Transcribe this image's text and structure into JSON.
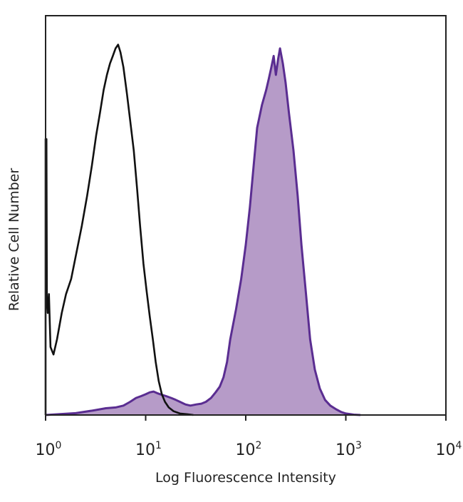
{
  "chart_data": {
    "type": "area",
    "xlabel": "Log Fluorescence Intensity",
    "ylabel": "Relative Cell Number",
    "xscale": "log",
    "xlim": [
      1,
      10000
    ],
    "ylim": [
      0,
      1.0
    ],
    "grid": false,
    "x_ticks": [
      {
        "base": "10",
        "exp": "0"
      },
      {
        "base": "10",
        "exp": "1"
      },
      {
        "base": "10",
        "exp": "2"
      },
      {
        "base": "10",
        "exp": "3"
      },
      {
        "base": "10",
        "exp": "4"
      }
    ],
    "series": [
      {
        "style": "outline",
        "color": "#111111",
        "points": [
          [
            1.0,
            0.0
          ],
          [
            1.0,
            0.73
          ],
          [
            1.02,
            0.73
          ],
          [
            1.03,
            0.31
          ],
          [
            1.05,
            0.27
          ],
          [
            1.08,
            0.32
          ],
          [
            1.12,
            0.18
          ],
          [
            1.2,
            0.16
          ],
          [
            1.3,
            0.2
          ],
          [
            1.45,
            0.27
          ],
          [
            1.6,
            0.32
          ],
          [
            1.8,
            0.36
          ],
          [
            2.0,
            0.42
          ],
          [
            2.3,
            0.5
          ],
          [
            2.6,
            0.58
          ],
          [
            2.9,
            0.66
          ],
          [
            3.2,
            0.74
          ],
          [
            3.5,
            0.8
          ],
          [
            3.8,
            0.86
          ],
          [
            4.1,
            0.9
          ],
          [
            4.4,
            0.93
          ],
          [
            4.7,
            0.95
          ],
          [
            5.0,
            0.97
          ],
          [
            5.3,
            0.98
          ],
          [
            5.6,
            0.96
          ],
          [
            6.0,
            0.92
          ],
          [
            6.5,
            0.85
          ],
          [
            7.0,
            0.78
          ],
          [
            7.6,
            0.7
          ],
          [
            8.2,
            0.6
          ],
          [
            8.8,
            0.5
          ],
          [
            9.5,
            0.4
          ],
          [
            10.2,
            0.33
          ],
          [
            11.0,
            0.26
          ],
          [
            11.8,
            0.2
          ],
          [
            12.6,
            0.14
          ],
          [
            13.5,
            0.09
          ],
          [
            14.5,
            0.055
          ],
          [
            15.6,
            0.035
          ],
          [
            17.0,
            0.02
          ],
          [
            19.0,
            0.01
          ],
          [
            22.0,
            0.004
          ],
          [
            26.0,
            0.002
          ],
          [
            30.0,
            0.0
          ]
        ]
      },
      {
        "style": "filled",
        "color": "#5a2d91",
        "fill": "#b69bc8",
        "points": [
          [
            1.0,
            0.0
          ],
          [
            2.0,
            0.005
          ],
          [
            3.0,
            0.012
          ],
          [
            4.0,
            0.018
          ],
          [
            5.0,
            0.02
          ],
          [
            6.0,
            0.025
          ],
          [
            7.0,
            0.035
          ],
          [
            8.0,
            0.045
          ],
          [
            9.0,
            0.05
          ],
          [
            10.0,
            0.055
          ],
          [
            11.0,
            0.06
          ],
          [
            12.0,
            0.062
          ],
          [
            13.0,
            0.058
          ],
          [
            14.0,
            0.055
          ],
          [
            16.0,
            0.05
          ],
          [
            18.0,
            0.045
          ],
          [
            20.0,
            0.04
          ],
          [
            22.0,
            0.035
          ],
          [
            25.0,
            0.028
          ],
          [
            28.0,
            0.025
          ],
          [
            32.0,
            0.028
          ],
          [
            36.0,
            0.03
          ],
          [
            40.0,
            0.035
          ],
          [
            45.0,
            0.045
          ],
          [
            50.0,
            0.06
          ],
          [
            55.0,
            0.075
          ],
          [
            60.0,
            0.1
          ],
          [
            65.0,
            0.14
          ],
          [
            70.0,
            0.2
          ],
          [
            80.0,
            0.28
          ],
          [
            90.0,
            0.36
          ],
          [
            100.0,
            0.45
          ],
          [
            110.0,
            0.55
          ],
          [
            120.0,
            0.66
          ],
          [
            130.0,
            0.76
          ],
          [
            145.0,
            0.82
          ],
          [
            160.0,
            0.86
          ],
          [
            170.0,
            0.89
          ],
          [
            180.0,
            0.92
          ],
          [
            190.0,
            0.95
          ],
          [
            200.0,
            0.9
          ],
          [
            210.0,
            0.94
          ],
          [
            220.0,
            0.97
          ],
          [
            235.0,
            0.93
          ],
          [
            250.0,
            0.88
          ],
          [
            270.0,
            0.8
          ],
          [
            300.0,
            0.7
          ],
          [
            330.0,
            0.58
          ],
          [
            360.0,
            0.45
          ],
          [
            400.0,
            0.32
          ],
          [
            440.0,
            0.2
          ],
          [
            490.0,
            0.12
          ],
          [
            550.0,
            0.07
          ],
          [
            620.0,
            0.04
          ],
          [
            700.0,
            0.025
          ],
          [
            800.0,
            0.015
          ],
          [
            900.0,
            0.008
          ],
          [
            1000.0,
            0.004
          ],
          [
            1200.0,
            0.001
          ],
          [
            1400.0,
            0.0
          ]
        ]
      }
    ]
  }
}
